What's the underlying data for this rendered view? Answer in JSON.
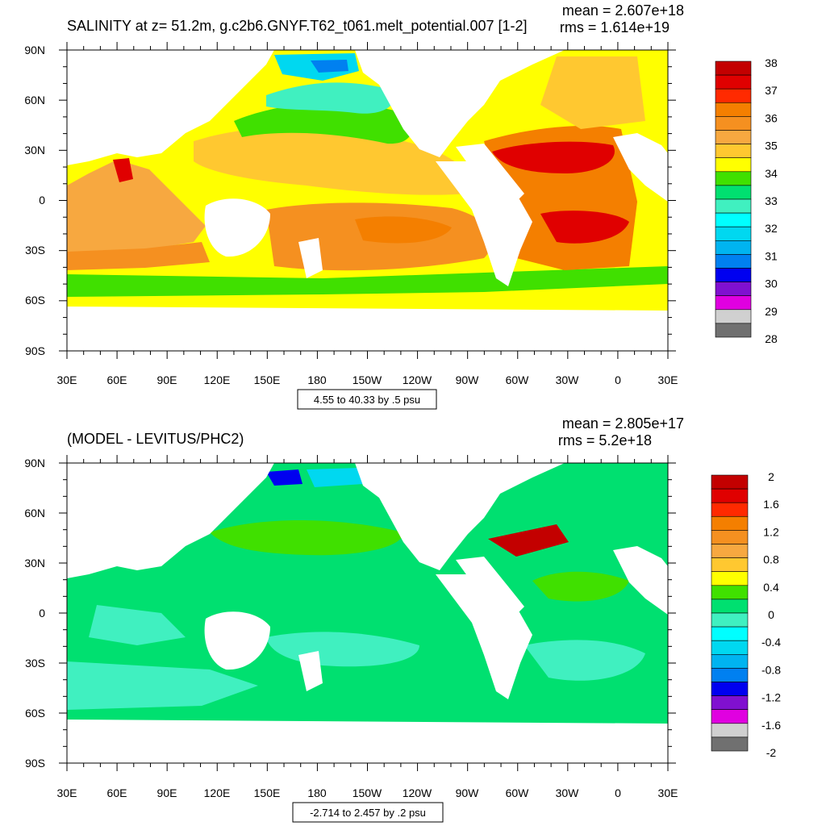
{
  "panels": [
    {
      "id": "top",
      "title": "SALINITY at z=  51.2m, g.c2b6.GNYF.T62_t061.melt_potential.007 [1-2]",
      "mean": "mean = 2.607e+18",
      "rms": "rms = 1.614e+19",
      "note": "4.55 to 40.33 by .5 psu",
      "colorbar": {
        "labels": [
          "38",
          "37",
          "36",
          "35",
          "34",
          "33",
          "32",
          "31",
          "30",
          "29",
          "28"
        ],
        "colors": [
          "#c30000",
          "#e00000",
          "#ff2a00",
          "#f47f00",
          "#f59020",
          "#f7a840",
          "#ffc830",
          "#ffff00",
          "#40e000",
          "#00e070",
          "#40f0c0",
          "#00ffff",
          "#00d8f0",
          "#00b4f0",
          "#0080f0",
          "#0000f0",
          "#8010d0",
          "#e000e0",
          "#d0d0d0",
          "#707070"
        ]
      }
    },
    {
      "id": "bottom",
      "title": "(MODEL - LEVITUS/PHC2)",
      "mean": "mean = 2.805e+17",
      "rms": "rms = 5.2e+18",
      "note": "-2.714 to 2.457 by .2 psu",
      "colorbar": {
        "labels": [
          "2",
          "1.6",
          "1.2",
          "0.8",
          "0.4",
          "0",
          "-0.4",
          "-0.8",
          "-1.2",
          "-1.6",
          "-2"
        ],
        "colors": [
          "#c30000",
          "#e00000",
          "#ff2a00",
          "#f47f00",
          "#f59020",
          "#f7a840",
          "#ffc830",
          "#ffff00",
          "#40e000",
          "#00e070",
          "#40f0c0",
          "#00ffff",
          "#00d8f0",
          "#00b4f0",
          "#0080f0",
          "#0000f0",
          "#8010d0",
          "#e000e0",
          "#d0d0d0",
          "#707070"
        ]
      }
    }
  ],
  "axes": {
    "lon_labels": [
      "30E",
      "60E",
      "90E",
      "120E",
      "150E",
      "180",
      "150W",
      "120W",
      "90W",
      "60W",
      "30W",
      "0",
      "30E"
    ],
    "lat_labels": [
      "90N",
      "60N",
      "30N",
      "0",
      "30S",
      "60S",
      "90S"
    ]
  },
  "colors": {
    "land": "#ffffff",
    "ocean_top": "#ffff00",
    "ocean_bottom": "#00e070"
  }
}
